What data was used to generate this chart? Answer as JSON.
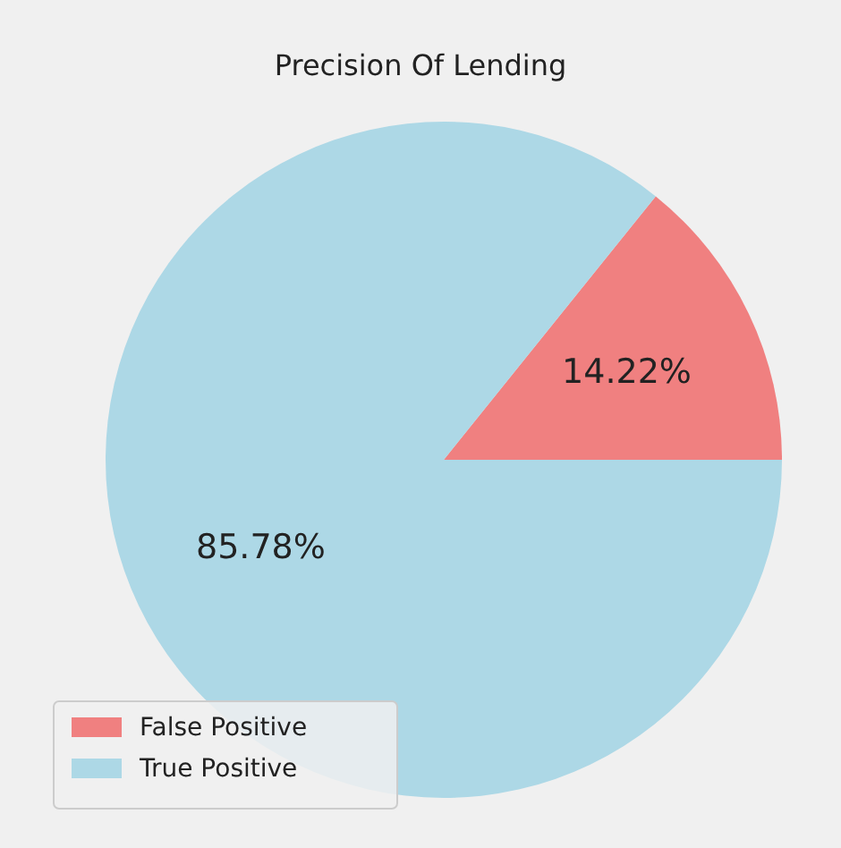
{
  "chart_data": {
    "type": "pie",
    "title": "Precision Of Lending",
    "categories": [
      "False Positive",
      "True Positive"
    ],
    "values": [
      14.22,
      85.78
    ],
    "colors": [
      "#f08080",
      "#add8e6"
    ],
    "value_labels": [
      "14.22%",
      "85.78%"
    ],
    "legend": "bottom left"
  }
}
